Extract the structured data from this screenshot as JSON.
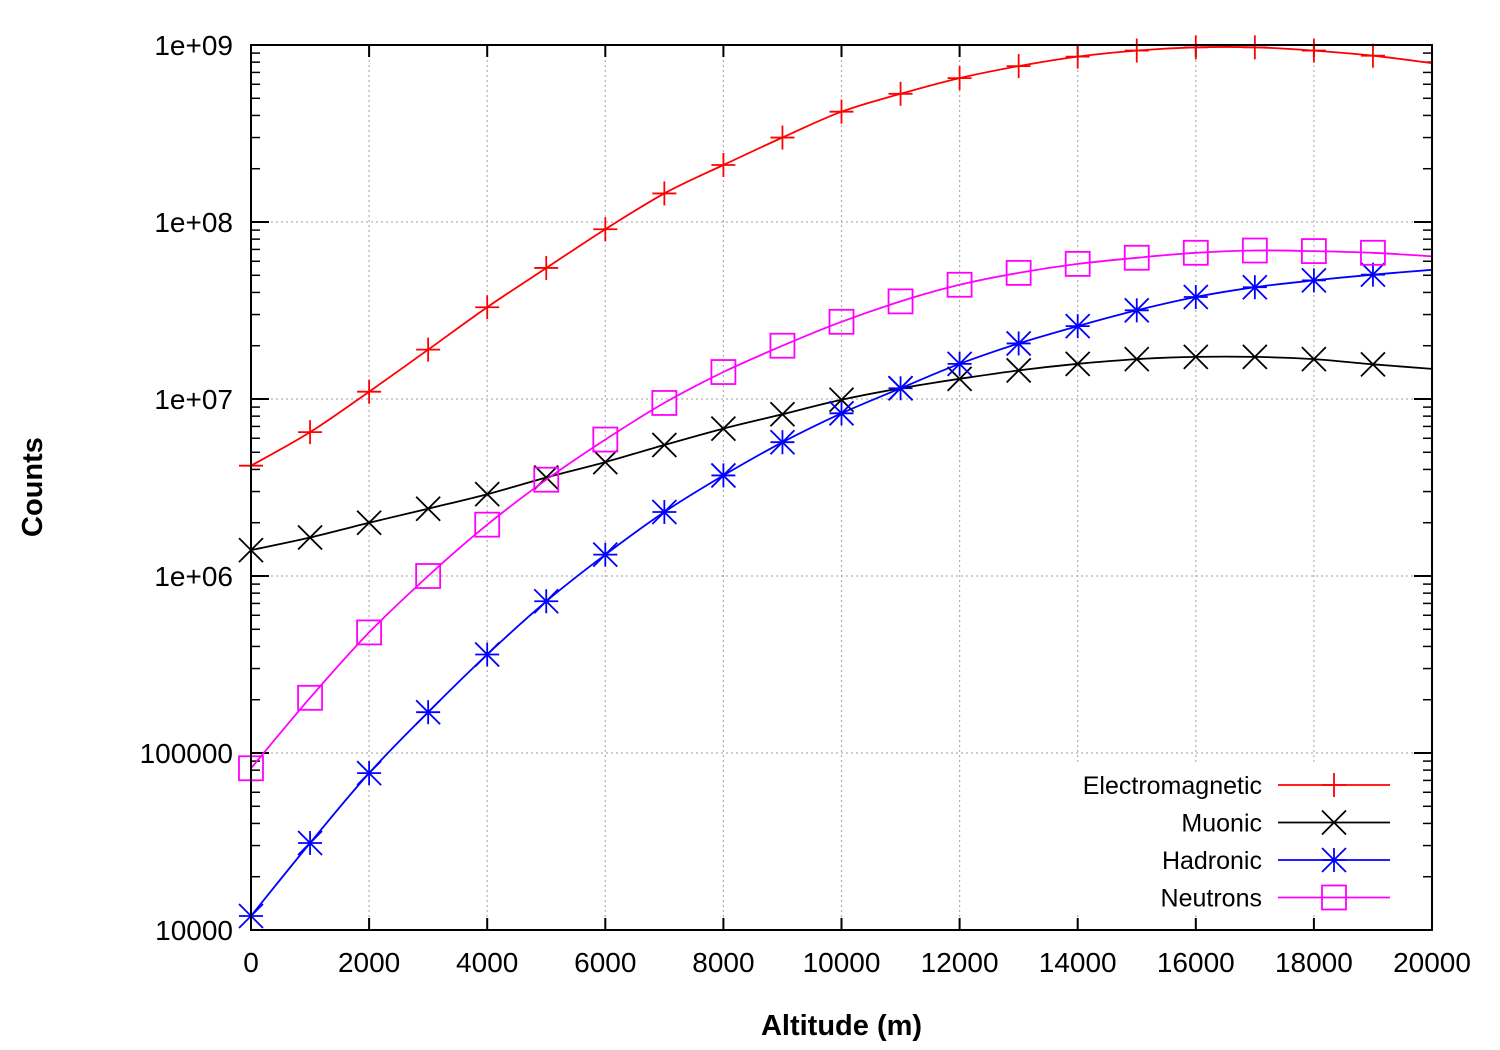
{
  "chart_data": {
    "type": "line",
    "title": "",
    "xlabel": "Altitude (m)",
    "ylabel": "Counts",
    "y_scale": "log",
    "xlim": [
      0,
      20000
    ],
    "ylim": [
      10000,
      1000000000
    ],
    "x_ticks": [
      0,
      2000,
      4000,
      6000,
      8000,
      10000,
      12000,
      14000,
      16000,
      18000,
      20000
    ],
    "x_tick_labels": [
      "0",
      "2000",
      "4000",
      "6000",
      "8000",
      "10000",
      "12000",
      "14000",
      "16000",
      "18000",
      "20000"
    ],
    "y_ticks": [
      10000,
      100000,
      1000000,
      10000000,
      100000000,
      1000000000
    ],
    "y_tick_labels": [
      "10000",
      "100000",
      "1e+06",
      "1e+07",
      "1e+08",
      "1e+09"
    ],
    "grid": true,
    "legend_position": "bottom-right",
    "x": [
      0,
      1000,
      2000,
      3000,
      4000,
      5000,
      6000,
      7000,
      8000,
      9000,
      10000,
      11000,
      12000,
      13000,
      14000,
      15000,
      16000,
      17000,
      18000,
      19000,
      20000
    ],
    "series": [
      {
        "name": "Electromagnetic",
        "color": "#ff0000",
        "marker": "plus",
        "values": [
          4200000,
          6500000,
          11000000,
          19000000,
          33000000,
          55000000,
          91000000,
          145000000,
          210000000,
          300000000,
          420000000,
          530000000,
          650000000,
          760000000,
          860000000,
          930000000,
          970000000,
          970000000,
          930000000,
          870000000,
          790000000
        ]
      },
      {
        "name": "Muonic",
        "color": "#000000",
        "marker": "cross",
        "values": [
          1400000,
          1650000,
          2000000,
          2400000,
          2900000,
          3600000,
          4400000,
          5500000,
          6800000,
          8200000,
          9900000,
          11500000,
          13000000,
          14500000,
          15800000,
          16800000,
          17300000,
          17300000,
          16800000,
          15700000,
          14800000
        ]
      },
      {
        "name": "Hadronic",
        "color": "#0000ff",
        "marker": "asterisk",
        "values": [
          12000,
          31000,
          77000,
          170000,
          360000,
          720000,
          1320000,
          2300000,
          3700000,
          5700000,
          8300000,
          11500000,
          15800000,
          20600000,
          25800000,
          31700000,
          37700000,
          42800000,
          46800000,
          50400000,
          53700000
        ]
      },
      {
        "name": "Neutrons",
        "color": "#ff00ff",
        "marker": "square",
        "values": [
          82000,
          205000,
          480000,
          1000000,
          1950000,
          3500000,
          5900000,
          9500000,
          14200000,
          20000000,
          27300000,
          35600000,
          44200000,
          51600000,
          58000000,
          62800000,
          67000000,
          69000000,
          68500000,
          67000000,
          64000000
        ]
      }
    ]
  }
}
